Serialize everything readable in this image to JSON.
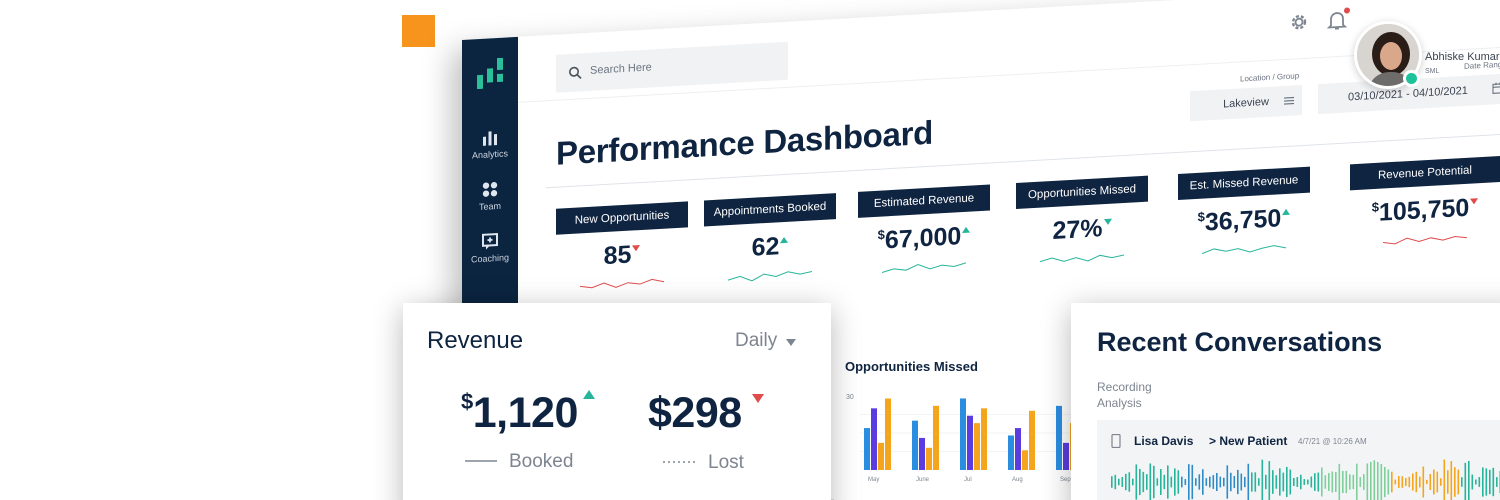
{
  "app": {
    "brand_color": "#0b2440",
    "accent_up": "#26b59a",
    "accent_down": "#e04b4b",
    "decor_color": "#f7941d"
  },
  "sidebar": {
    "items": [
      {
        "label": "Analytics",
        "icon": "bar-chart-icon"
      },
      {
        "label": "Team",
        "icon": "team-icon"
      },
      {
        "label": "Coaching",
        "icon": "coaching-icon"
      }
    ]
  },
  "header": {
    "search_placeholder": "Search Here",
    "user": {
      "name": "Abhiske Kumar",
      "role": "SML",
      "status": "online"
    }
  },
  "page": {
    "title": "Performance Dashboard",
    "filters": {
      "location_label": "Location / Group",
      "location_value": "Lakeview",
      "date_label": "Date Range",
      "date_value": "03/10/2021 - 04/10/2021"
    }
  },
  "metrics": [
    {
      "label": "New Opportunities",
      "value": "85",
      "currency": "",
      "trend": "down"
    },
    {
      "label": "Appointments Booked",
      "value": "62",
      "currency": "",
      "trend": "up"
    },
    {
      "label": "Estimated Revenue",
      "value": "67,000",
      "currency": "$",
      "trend": "up"
    },
    {
      "label": "Opportunities Missed",
      "value": "27%",
      "currency": "",
      "trend": "down"
    },
    {
      "label": "Est. Missed Revenue",
      "value": "36,750",
      "currency": "$",
      "trend": "up"
    },
    {
      "label": "Revenue Potential",
      "value": "105,750",
      "currency": "$",
      "trend": "down"
    }
  ],
  "revenue": {
    "title": "Revenue",
    "period": "Daily",
    "booked": {
      "value": "1,120",
      "currency": "$",
      "label": "Booked",
      "trend": "up"
    },
    "lost": {
      "value": "$298",
      "label": "Lost",
      "trend": "down"
    }
  },
  "opportunities_missed": {
    "title": "Opportunities Missed",
    "y_tick": "30",
    "chart_data": {
      "type": "bar",
      "title": "Opportunities Missed",
      "categories": [
        "May",
        "June",
        "Jul",
        "Aug",
        "Sep"
      ],
      "series": [
        {
          "values": [
            17,
            20,
            29,
            14,
            26
          ],
          "color": "#2b8de0"
        },
        {
          "values": [
            25,
            13,
            22,
            17,
            11
          ],
          "color": "#5b3ce0"
        },
        {
          "values": [
            11,
            9,
            19,
            8,
            19
          ],
          "color": "#f4a51c"
        },
        {
          "values": [
            29,
            26,
            25,
            24,
            21
          ],
          "color": "#f4a51c"
        }
      ],
      "ylim": [
        0,
        30
      ]
    }
  },
  "conversations": {
    "title": "Recent Conversations",
    "subtitle": "Recording Analysis",
    "items": [
      {
        "name": "Lisa Davis",
        "type": "> New Patient",
        "time": "4/7/21 @ 10:26 AM"
      }
    ]
  }
}
